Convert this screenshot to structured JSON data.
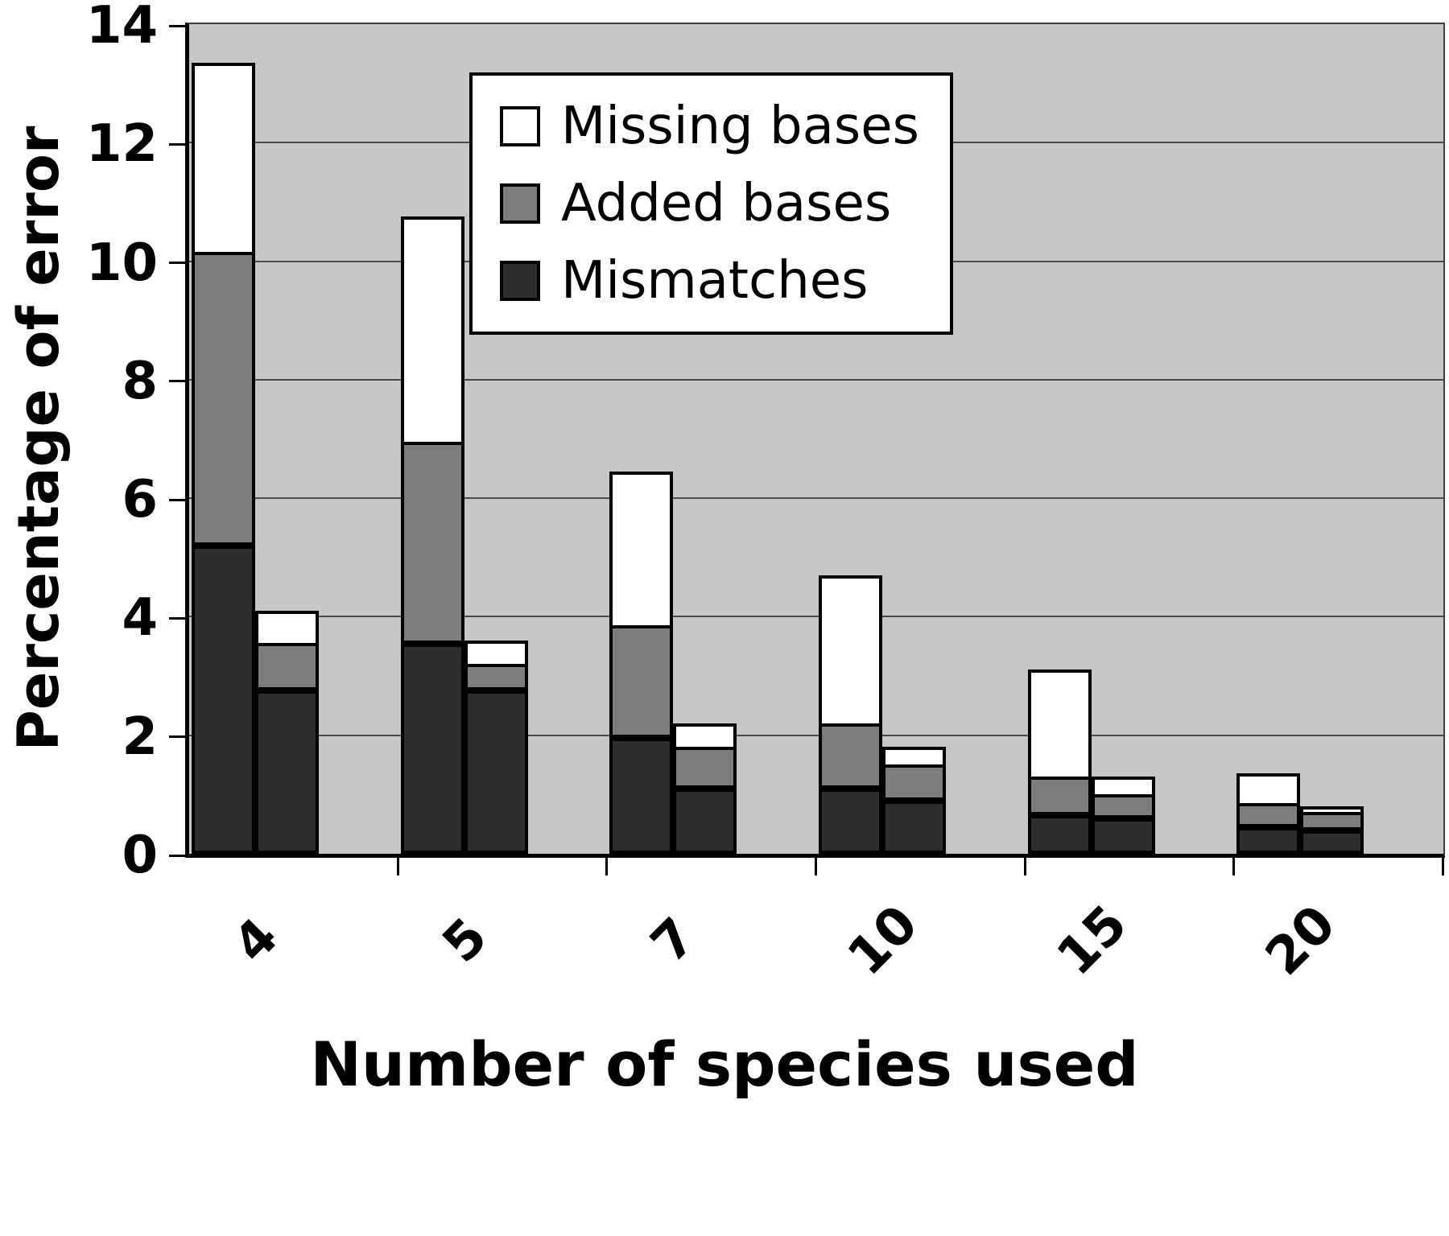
{
  "figure": {
    "background": "#ffffff",
    "plot_background": "#c7c7c7",
    "gridline_color": "#4a4a4a"
  },
  "chart_data": {
    "type": "bar",
    "stacked": true,
    "orientation": "vertical",
    "title": "",
    "xlabel": "Number of species used",
    "ylabel": "Percentage of error",
    "ylim": [
      0,
      14
    ],
    "yticks": [
      0,
      2,
      4,
      6,
      8,
      10,
      12,
      14
    ],
    "grid": "horizontal",
    "categories": [
      "4",
      "5",
      "7",
      "10",
      "15",
      "20"
    ],
    "bars_per_category": 2,
    "series": [
      {
        "name": "Mismatches",
        "color": "#2e2e2e",
        "values": [
          [
            5.2,
            2.75
          ],
          [
            3.55,
            2.75
          ],
          [
            1.95,
            1.1
          ],
          [
            1.1,
            0.9
          ],
          [
            0.65,
            0.6
          ],
          [
            0.45,
            0.4
          ]
        ]
      },
      {
        "name": "Added bases",
        "color": "#7d7d7d",
        "values": [
          [
            4.9,
            0.75
          ],
          [
            3.35,
            0.4
          ],
          [
            1.85,
            0.65
          ],
          [
            1.05,
            0.55
          ],
          [
            0.6,
            0.35
          ],
          [
            0.35,
            0.25
          ]
        ]
      },
      {
        "name": "Missing bases",
        "color": "#ffffff",
        "values": [
          [
            3.2,
            0.55
          ],
          [
            3.8,
            0.4
          ],
          [
            2.6,
            0.4
          ],
          [
            2.5,
            0.3
          ],
          [
            1.8,
            0.3
          ],
          [
            0.5,
            0.1
          ]
        ]
      }
    ],
    "stack_order_bottom_to_top": [
      "Mismatches",
      "Added bases",
      "Missing bases"
    ],
    "legend": {
      "position": "top-center-inside",
      "entries": [
        {
          "label": "Missing bases",
          "color": "#ffffff"
        },
        {
          "label": "Added bases",
          "color": "#7d7d7d"
        },
        {
          "label": "Mismatches",
          "color": "#2e2e2e"
        }
      ]
    }
  }
}
